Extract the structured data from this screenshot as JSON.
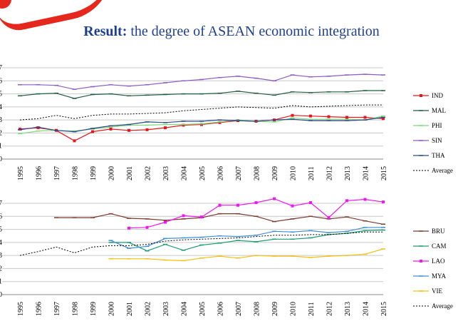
{
  "slide": {
    "title_bold": "Result:",
    "title_rest": " the degree of ASEAN economic integration"
  },
  "chart_data": [
    {
      "type": "line",
      "x": [
        "1995",
        "1996",
        "1997",
        "1998",
        "1999",
        "2000",
        "2001",
        "2002",
        "2003",
        "2004",
        "2005",
        "2006",
        "2007",
        "2008",
        "2009",
        "2010",
        "2011",
        "2012",
        "2013",
        "2014",
        "2015"
      ],
      "ylim": [
        0,
        7
      ],
      "grid": true,
      "legend": "right",
      "series": [
        {
          "name": "IND",
          "color": "#e8161b",
          "marker": "square",
          "values": [
            2.3,
            2.4,
            2.2,
            1.4,
            2.1,
            2.3,
            2.2,
            2.25,
            2.4,
            2.6,
            2.65,
            2.8,
            2.95,
            2.9,
            3.0,
            3.35,
            3.3,
            3.25,
            3.2,
            3.2,
            3.1
          ]
        },
        {
          "name": "MAL",
          "color": "#1f5e3e",
          "marker": "dash",
          "values": [
            4.85,
            5.0,
            5.05,
            4.65,
            4.95,
            5.0,
            4.85,
            4.9,
            4.95,
            5.0,
            5.0,
            5.05,
            5.2,
            5.05,
            4.9,
            5.15,
            5.1,
            5.15,
            5.15,
            5.25,
            5.25
          ]
        },
        {
          "name": "PHI",
          "color": "#7dd97d",
          "marker": "dash",
          "values": [
            1.95,
            2.15,
            2.2,
            2.15,
            2.3,
            2.45,
            2.6,
            2.6,
            2.65,
            2.65,
            2.7,
            2.85,
            3.0,
            2.9,
            2.85,
            3.15,
            3.05,
            3.05,
            3.05,
            3.0,
            3.3
          ]
        },
        {
          "name": "SIN",
          "color": "#8e5cc3",
          "marker": "dash",
          "values": [
            5.7,
            5.7,
            5.65,
            5.35,
            5.55,
            5.7,
            5.6,
            5.7,
            5.85,
            6.0,
            6.1,
            6.25,
            6.35,
            6.2,
            6.0,
            6.45,
            6.3,
            6.35,
            6.45,
            6.5,
            6.45
          ]
        },
        {
          "name": "THA",
          "color": "#2a4a8a",
          "marker": "dash",
          "values": [
            2.25,
            2.45,
            2.2,
            2.1,
            2.35,
            2.55,
            2.65,
            2.85,
            2.8,
            2.9,
            2.9,
            3.0,
            2.95,
            2.9,
            3.0,
            3.05,
            2.95,
            2.95,
            2.95,
            3.0,
            3.2
          ]
        },
        {
          "name": "Average",
          "color": "#000000",
          "marker": "none",
          "dashed": true,
          "values": [
            3.0,
            3.1,
            3.35,
            3.1,
            3.35,
            3.45,
            3.45,
            3.5,
            3.55,
            3.7,
            3.8,
            3.9,
            4.0,
            3.95,
            3.9,
            4.1,
            4.0,
            4.05,
            4.1,
            4.15,
            4.15
          ]
        }
      ]
    },
    {
      "type": "line",
      "x": [
        "1995",
        "1996",
        "1997",
        "1998",
        "1999",
        "2000",
        "2001",
        "2002",
        "2003",
        "2004",
        "2005",
        "2006",
        "2007",
        "2008",
        "2009",
        "2010",
        "2011",
        "2012",
        "2013",
        "2014",
        "2015"
      ],
      "ylim": [
        0,
        7
      ],
      "grid": true,
      "legend": "right",
      "series": [
        {
          "name": "BRU",
          "color": "#7b3a2c",
          "marker": "dash",
          "values": [
            null,
            null,
            5.9,
            5.9,
            5.9,
            6.2,
            5.85,
            5.8,
            5.7,
            5.8,
            5.9,
            6.2,
            6.2,
            6.0,
            5.6,
            5.8,
            6.0,
            5.8,
            5.95,
            5.65,
            5.4
          ]
        },
        {
          "name": "CAM",
          "color": "#1a9e74",
          "marker": "dash",
          "values": [
            null,
            null,
            null,
            null,
            null,
            4.0,
            4.0,
            3.35,
            3.85,
            3.4,
            3.8,
            3.95,
            4.15,
            4.05,
            4.25,
            4.25,
            4.35,
            4.6,
            4.7,
            4.9,
            4.95
          ]
        },
        {
          "name": "LAO",
          "color": "#f016f0",
          "marker": "square",
          "values": [
            null,
            null,
            null,
            null,
            null,
            null,
            5.1,
            5.15,
            5.55,
            6.05,
            5.95,
            6.85,
            6.85,
            7.05,
            7.35,
            6.8,
            7.05,
            5.9,
            7.2,
            7.3,
            7.1
          ]
        },
        {
          "name": "MYA",
          "color": "#3d8fd6",
          "marker": "dash",
          "values": [
            null,
            null,
            null,
            null,
            null,
            4.15,
            3.55,
            3.7,
            4.3,
            4.35,
            4.4,
            4.5,
            4.45,
            4.55,
            4.85,
            4.8,
            4.9,
            4.75,
            4.85,
            5.15,
            5.15
          ]
        },
        {
          "name": "VIE",
          "color": "#f5c014",
          "marker": "dash",
          "values": [
            null,
            null,
            null,
            null,
            null,
            2.75,
            2.75,
            2.75,
            2.65,
            2.6,
            2.8,
            2.95,
            2.8,
            3.0,
            2.95,
            2.95,
            2.85,
            2.95,
            3.0,
            3.1,
            3.5
          ]
        },
        {
          "name": "Average",
          "color": "#000000",
          "marker": "none",
          "dashed": true,
          "values": [
            3.0,
            3.3,
            3.65,
            3.2,
            3.65,
            3.75,
            3.75,
            3.85,
            4.1,
            4.2,
            4.25,
            4.3,
            4.35,
            4.45,
            4.55,
            4.55,
            4.6,
            4.6,
            4.7,
            4.8,
            4.8
          ]
        }
      ]
    }
  ]
}
